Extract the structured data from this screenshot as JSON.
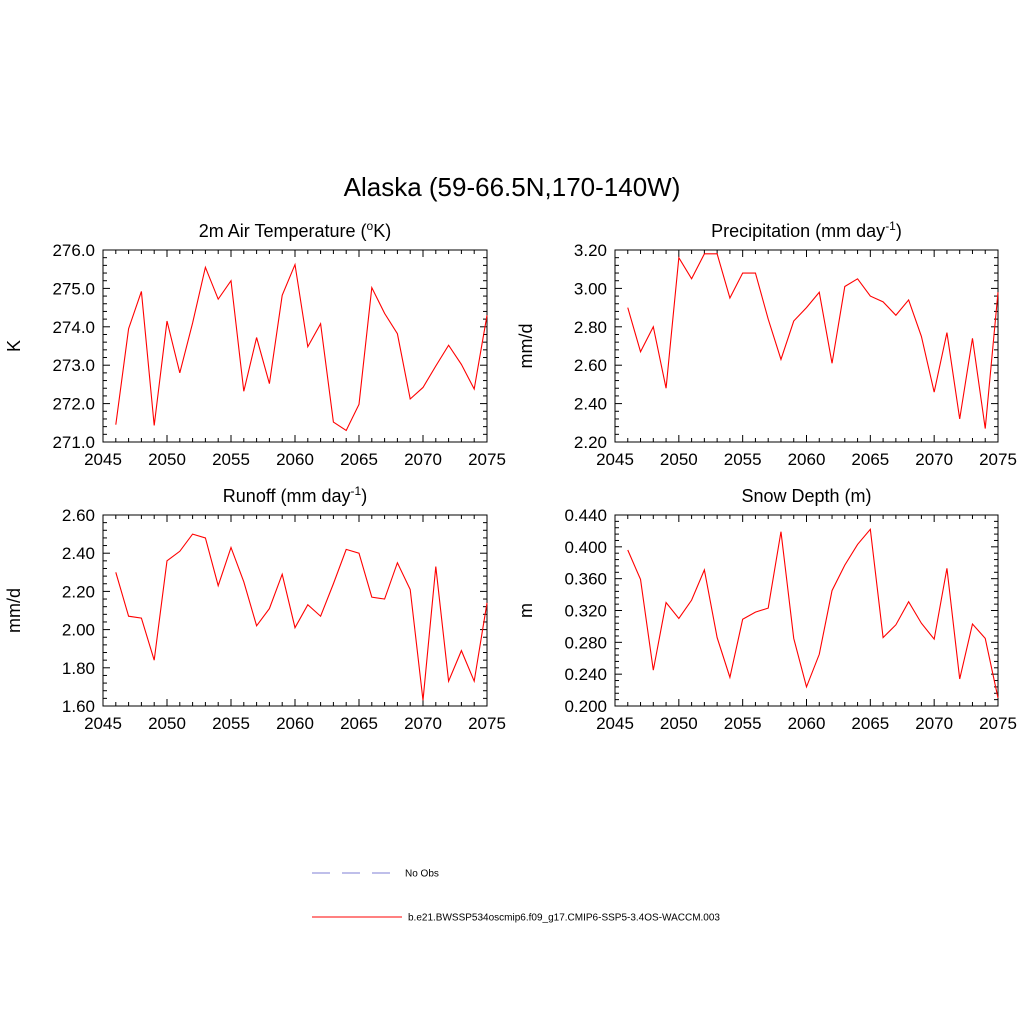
{
  "title": "Alaska (59-66.5N,170-140W)",
  "colors": {
    "series": "#ff0000",
    "obs": "#9999dd",
    "axis": "#000000"
  },
  "legend": [
    {
      "label": "No Obs",
      "style": "dashed",
      "color": "#9999dd"
    },
    {
      "label": "b.e21.BWSSP534oscmip6.f09_g17.CMIP6-SSP5-3.4OS-WACCM.003",
      "style": "solid",
      "color": "#ff0000"
    }
  ],
  "chart_data": [
    {
      "type": "line",
      "title": "2m Air Temperature (",
      "title_sup": "o",
      "title_after": "K)",
      "ylabel": "K",
      "xlabel": "",
      "xlim": [
        2045,
        2075
      ],
      "ylim": [
        271.0,
        276.0
      ],
      "xticks": [
        "2045",
        "2050",
        "2055",
        "2060",
        "2065",
        "2070",
        "2075"
      ],
      "yticks": [
        "271.0",
        "272.0",
        "273.0",
        "274.0",
        "275.0",
        "276.0"
      ],
      "x": [
        2046,
        2047,
        2048,
        2049,
        2050,
        2051,
        2052,
        2053,
        2054,
        2055,
        2056,
        2057,
        2058,
        2059,
        2060,
        2061,
        2062,
        2063,
        2064,
        2065,
        2066,
        2067,
        2068,
        2069,
        2070,
        2071,
        2072,
        2073,
        2074,
        2075
      ],
      "values": [
        271.45,
        273.95,
        274.92,
        271.43,
        274.15,
        272.8,
        274.1,
        275.55,
        274.72,
        275.2,
        272.32,
        273.72,
        272.52,
        274.82,
        275.62,
        273.48,
        274.08,
        271.52,
        271.3,
        271.98,
        275.02,
        274.35,
        273.82,
        272.12,
        272.42,
        272.98,
        273.52,
        273.02,
        272.38,
        274.3
      ]
    },
    {
      "type": "line",
      "title": "Precipitation (mm day",
      "title_sup": "-1",
      "title_after": ")",
      "ylabel": "mm/d",
      "xlabel": "",
      "xlim": [
        2045,
        2075
      ],
      "ylim": [
        2.2,
        3.2
      ],
      "xticks": [
        "2045",
        "2050",
        "2055",
        "2060",
        "2065",
        "2070",
        "2075"
      ],
      "yticks": [
        "2.20",
        "2.40",
        "2.60",
        "2.80",
        "3.00",
        "3.20"
      ],
      "x": [
        2046,
        2047,
        2048,
        2049,
        2050,
        2051,
        2052,
        2053,
        2054,
        2055,
        2056,
        2057,
        2058,
        2059,
        2060,
        2061,
        2062,
        2063,
        2064,
        2065,
        2066,
        2067,
        2068,
        2069,
        2070,
        2071,
        2072,
        2073,
        2074,
        2075
      ],
      "values": [
        2.9,
        2.67,
        2.8,
        2.48,
        3.16,
        3.05,
        3.18,
        3.18,
        2.95,
        3.08,
        3.08,
        2.84,
        2.63,
        2.83,
        2.9,
        2.98,
        2.61,
        3.01,
        3.05,
        2.96,
        2.93,
        2.86,
        2.94,
        2.75,
        2.46,
        2.77,
        2.32,
        2.74,
        2.27,
        2.98
      ]
    },
    {
      "type": "line",
      "title": "Runoff (mm day",
      "title_sup": "-1",
      "title_after": ")",
      "ylabel": "mm/d",
      "xlabel": "",
      "xlim": [
        2045,
        2075
      ],
      "ylim": [
        1.6,
        2.6
      ],
      "xticks": [
        "2045",
        "2050",
        "2055",
        "2060",
        "2065",
        "2070",
        "2075"
      ],
      "yticks": [
        "1.60",
        "1.80",
        "2.00",
        "2.20",
        "2.40",
        "2.60"
      ],
      "x": [
        2046,
        2047,
        2048,
        2049,
        2050,
        2051,
        2052,
        2053,
        2054,
        2055,
        2056,
        2057,
        2058,
        2059,
        2060,
        2061,
        2062,
        2063,
        2064,
        2065,
        2066,
        2067,
        2068,
        2069,
        2070,
        2071,
        2072,
        2073,
        2074,
        2075
      ],
      "values": [
        2.3,
        2.07,
        2.06,
        1.84,
        2.36,
        2.41,
        2.5,
        2.48,
        2.23,
        2.43,
        2.25,
        2.02,
        2.11,
        2.29,
        2.01,
        2.13,
        2.07,
        2.24,
        2.42,
        2.4,
        2.17,
        2.16,
        2.35,
        2.21,
        1.63,
        2.33,
        1.73,
        1.89,
        1.73,
        2.14
      ]
    },
    {
      "type": "line",
      "title": "Snow Depth (m)",
      "title_sup": "",
      "title_after": "",
      "ylabel": "m",
      "xlabel": "",
      "xlim": [
        2045,
        2075
      ],
      "ylim": [
        0.2,
        0.44
      ],
      "xticks": [
        "2045",
        "2050",
        "2055",
        "2060",
        "2065",
        "2070",
        "2075"
      ],
      "yticks": [
        "0.200",
        "0.240",
        "0.280",
        "0.320",
        "0.360",
        "0.400",
        "0.440"
      ],
      "x": [
        2046,
        2047,
        2048,
        2049,
        2050,
        2051,
        2052,
        2053,
        2054,
        2055,
        2056,
        2057,
        2058,
        2059,
        2060,
        2061,
        2062,
        2063,
        2064,
        2065,
        2066,
        2067,
        2068,
        2069,
        2070,
        2071,
        2072,
        2073,
        2074,
        2075
      ],
      "values": [
        0.396,
        0.359,
        0.245,
        0.33,
        0.31,
        0.333,
        0.371,
        0.286,
        0.236,
        0.309,
        0.318,
        0.323,
        0.419,
        0.285,
        0.224,
        0.265,
        0.345,
        0.377,
        0.403,
        0.422,
        0.286,
        0.302,
        0.331,
        0.304,
        0.284,
        0.373,
        0.234,
        0.303,
        0.285,
        0.21
      ]
    }
  ]
}
